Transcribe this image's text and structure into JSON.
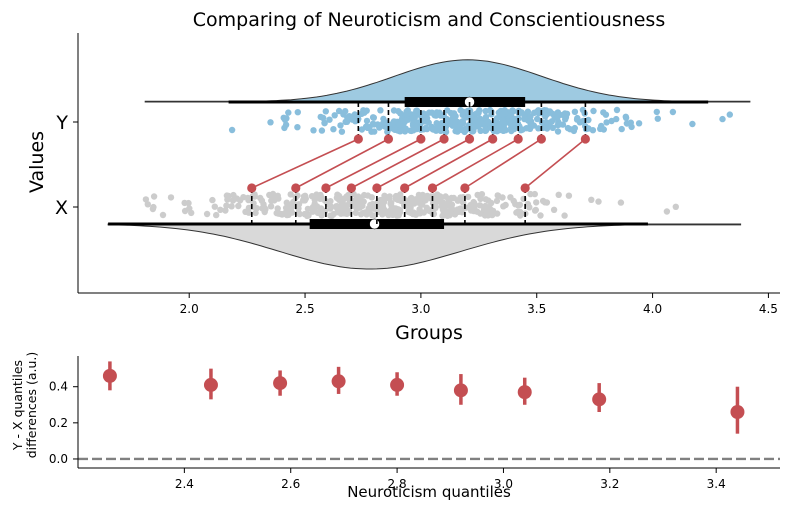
{
  "chart_data": [
    {
      "type": "raincloud",
      "title": "Comparing of Neuroticism and  Conscientiousness",
      "xlabel": "Groups",
      "ylabel": "Values",
      "xlim": [
        1.52,
        4.55
      ],
      "xticks": [
        2.0,
        2.5,
        3.0,
        3.5,
        4.0,
        4.5
      ],
      "xtick_labels": [
        "2.0",
        "2.5",
        "3.0",
        "3.5",
        "4.0",
        "4.5"
      ],
      "categories": [
        "Y",
        "X"
      ],
      "colors": {
        "Y": "#89bedc",
        "X": "#cccccc",
        "Y_violin": "#9ecae1",
        "X_violin": "#d9d9d9",
        "link": "#c44e52"
      },
      "groups": [
        {
          "name": "Y",
          "min": 1.81,
          "whisker_low": 2.17,
          "q1": 2.93,
          "median": 3.21,
          "q3": 3.45,
          "whisker_high": 4.24,
          "max": 4.42,
          "kde_peak": 3.22
        },
        {
          "name": "X",
          "min": 1.65,
          "whisker_low": 1.65,
          "q1": 2.52,
          "median": 2.8,
          "q3": 3.1,
          "whisker_high": 3.98,
          "max": 4.38,
          "kde_peak": 2.8
        }
      ],
      "quantile_links": [
        {
          "x": 2.27,
          "y": 2.73
        },
        {
          "x": 2.46,
          "y": 2.86
        },
        {
          "x": 2.59,
          "y": 3.0
        },
        {
          "x": 2.7,
          "y": 3.1
        },
        {
          "x": 2.81,
          "y": 3.21
        },
        {
          "x": 2.93,
          "y": 3.31
        },
        {
          "x": 3.05,
          "y": 3.42
        },
        {
          "x": 3.19,
          "y": 3.52
        },
        {
          "x": 3.45,
          "y": 3.71
        }
      ]
    },
    {
      "type": "scatter",
      "xlabel": "Neuroticism quantiles",
      "ylabel": "Y - X quantiles\ndifferences (a.u.)",
      "xlim": [
        2.2,
        3.52
      ],
      "ylim": [
        -0.05,
        0.57
      ],
      "xticks": [
        2.4,
        2.6,
        2.8,
        3.0,
        3.2,
        3.4
      ],
      "xtick_labels": [
        "2.4",
        "2.6",
        "2.8",
        "3.0",
        "3.2",
        "3.4"
      ],
      "yticks": [
        0.0,
        0.2,
        0.4
      ],
      "ytick_labels": [
        "0.0",
        "0.2",
        "0.4"
      ],
      "reference_line": 0.0,
      "points": [
        {
          "x": 2.26,
          "y": 0.46,
          "lo": 0.38,
          "hi": 0.54
        },
        {
          "x": 2.45,
          "y": 0.41,
          "lo": 0.33,
          "hi": 0.5
        },
        {
          "x": 2.58,
          "y": 0.42,
          "lo": 0.35,
          "hi": 0.49
        },
        {
          "x": 2.69,
          "y": 0.43,
          "lo": 0.36,
          "hi": 0.51
        },
        {
          "x": 2.8,
          "y": 0.41,
          "lo": 0.35,
          "hi": 0.48
        },
        {
          "x": 2.92,
          "y": 0.38,
          "lo": 0.3,
          "hi": 0.47
        },
        {
          "x": 3.04,
          "y": 0.37,
          "lo": 0.3,
          "hi": 0.45
        },
        {
          "x": 3.18,
          "y": 0.33,
          "lo": 0.26,
          "hi": 0.42
        },
        {
          "x": 3.44,
          "y": 0.26,
          "lo": 0.14,
          "hi": 0.4
        }
      ]
    }
  ]
}
